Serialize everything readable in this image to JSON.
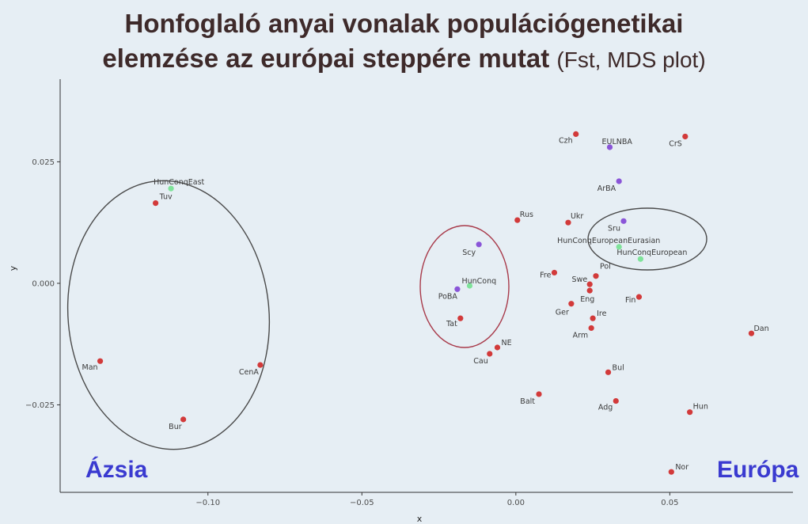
{
  "slide": {
    "title_line1": "Honfoglaló anyai vonalak populációgenetikai",
    "title_line2": "elemzése az európai steppére mutat",
    "title_suffix": "(Fst, MDS plot)"
  },
  "chart_data": {
    "type": "scatter",
    "xlabel": "x",
    "ylabel": "y",
    "xlim": [
      -0.148,
      0.09
    ],
    "ylim": [
      -0.043,
      0.042
    ],
    "x_ticks": [
      -0.1,
      -0.05,
      0.0,
      0.05
    ],
    "x_tick_labels": [
      "−0.10",
      "−0.05",
      "0.00",
      "0.05"
    ],
    "y_ticks": [
      -0.025,
      0.0,
      0.025
    ],
    "y_tick_labels": [
      "−0.025",
      "0.000",
      "0.025"
    ],
    "grid": false,
    "colors": {
      "modern": "#d23a3a",
      "ancient": "#8a55d8",
      "conqueror": "#7fe39a"
    },
    "points": [
      {
        "label": "HunConqEast",
        "x": -0.112,
        "y": 0.0195,
        "group": "conqueror"
      },
      {
        "label": "Tuv",
        "x": -0.117,
        "y": 0.0165,
        "group": "modern"
      },
      {
        "label": "Man",
        "x": -0.135,
        "y": -0.016,
        "group": "modern"
      },
      {
        "label": "CenA",
        "x": -0.083,
        "y": -0.0168,
        "group": "modern"
      },
      {
        "label": "Bur",
        "x": -0.108,
        "y": -0.028,
        "group": "modern"
      },
      {
        "label": "Scy",
        "x": -0.012,
        "y": 0.008,
        "group": "ancient"
      },
      {
        "label": "HunConq",
        "x": -0.015,
        "y": -0.0005,
        "group": "conqueror"
      },
      {
        "label": "PoBA",
        "x": -0.019,
        "y": -0.0012,
        "group": "ancient"
      },
      {
        "label": "Tat",
        "x": -0.018,
        "y": -0.0072,
        "group": "modern"
      },
      {
        "label": "NE",
        "x": -0.006,
        "y": -0.0132,
        "group": "modern"
      },
      {
        "label": "Cau",
        "x": -0.0085,
        "y": -0.0145,
        "group": "modern"
      },
      {
        "label": "Rus",
        "x": 0.0005,
        "y": 0.013,
        "group": "modern"
      },
      {
        "label": "Czh",
        "x": 0.0195,
        "y": 0.0307,
        "group": "modern"
      },
      {
        "label": "EULNBA",
        "x": 0.0305,
        "y": 0.028,
        "group": "ancient"
      },
      {
        "label": "CrS",
        "x": 0.055,
        "y": 0.0302,
        "group": "modern"
      },
      {
        "label": "ArBA",
        "x": 0.0335,
        "y": 0.021,
        "group": "ancient"
      },
      {
        "label": "Ukr",
        "x": 0.017,
        "y": 0.0125,
        "group": "modern"
      },
      {
        "label": "Sru",
        "x": 0.035,
        "y": 0.0128,
        "group": "ancient"
      },
      {
        "label": "HunConqEuropeanEurasian",
        "x": 0.0335,
        "y": 0.0075,
        "group": "conqueror"
      },
      {
        "label": "HunConqEuropean",
        "x": 0.0405,
        "y": 0.005,
        "group": "conqueror"
      },
      {
        "label": "Fre",
        "x": 0.0125,
        "y": 0.0022,
        "group": "modern"
      },
      {
        "label": "Pol",
        "x": 0.026,
        "y": 0.0015,
        "group": "modern"
      },
      {
        "label": "Swe",
        "x": 0.024,
        "y": -0.0002,
        "group": "modern"
      },
      {
        "label": "Eng",
        "x": 0.024,
        "y": -0.0015,
        "group": "modern"
      },
      {
        "label": "Ger",
        "x": 0.018,
        "y": -0.0042,
        "group": "modern"
      },
      {
        "label": "Fin",
        "x": 0.04,
        "y": -0.0028,
        "group": "modern"
      },
      {
        "label": "Ire",
        "x": 0.025,
        "y": -0.0072,
        "group": "modern"
      },
      {
        "label": "Arm",
        "x": 0.0245,
        "y": -0.0092,
        "group": "modern"
      },
      {
        "label": "Dan",
        "x": 0.0765,
        "y": -0.0103,
        "group": "modern"
      },
      {
        "label": "Bul",
        "x": 0.03,
        "y": -0.0183,
        "group": "modern"
      },
      {
        "label": "Balt",
        "x": 0.0075,
        "y": -0.0228,
        "group": "modern"
      },
      {
        "label": "Adg",
        "x": 0.0325,
        "y": -0.0242,
        "group": "modern"
      },
      {
        "label": "Hun",
        "x": 0.0565,
        "y": -0.0265,
        "group": "modern"
      },
      {
        "label": "Nor",
        "x": 0.0505,
        "y": -0.0388,
        "group": "modern"
      }
    ],
    "annotations": {
      "asia_label": "Ázsia",
      "europe_label": "Európa",
      "asia_ellipse_color": "#4a4a4a",
      "steppe_ellipse_color": "#a83a4a",
      "europe_ellipse_color": "#4a4a4a"
    }
  }
}
